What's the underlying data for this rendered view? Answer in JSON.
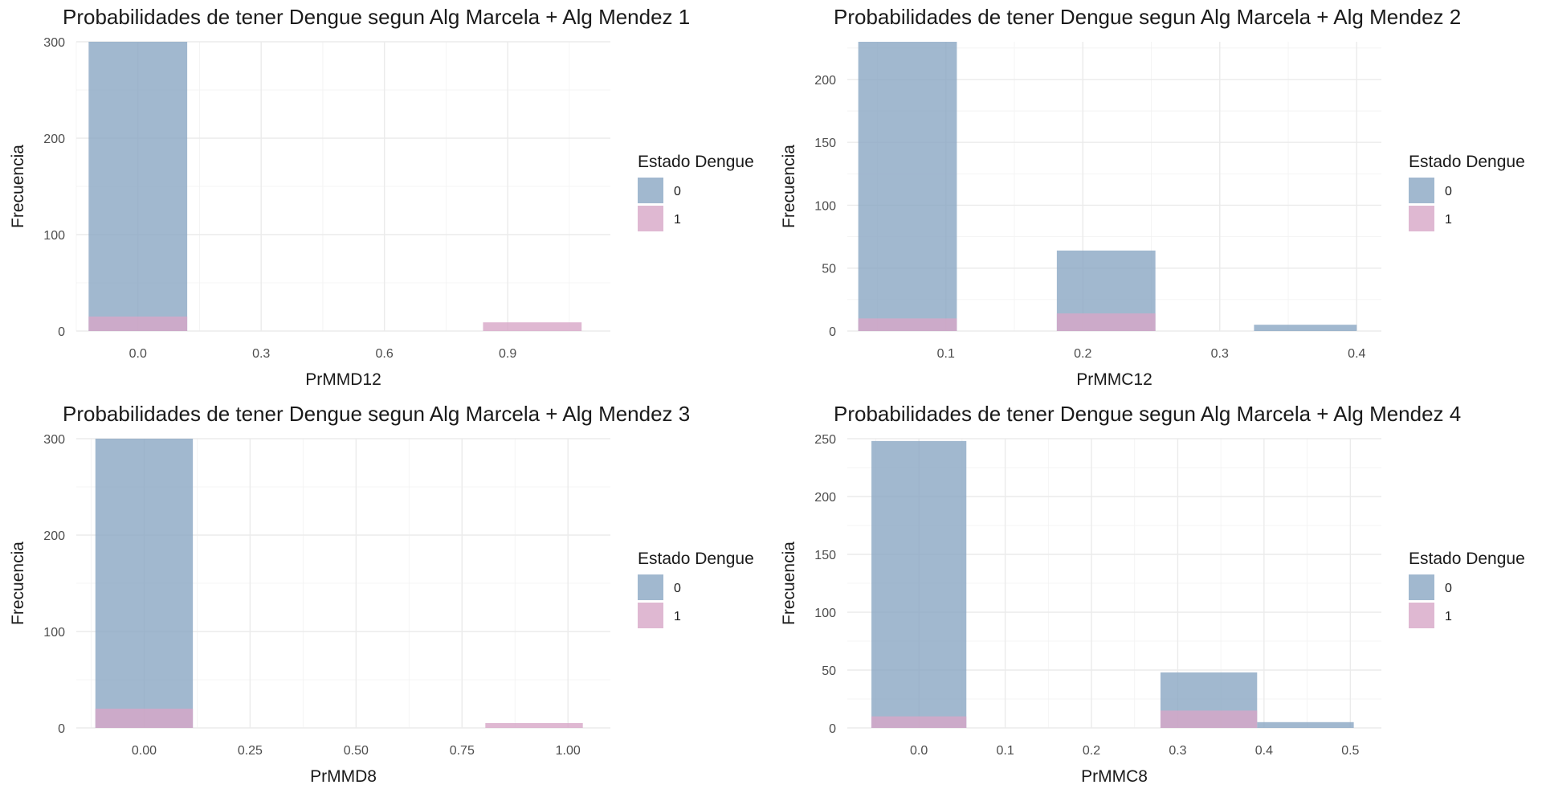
{
  "colors": {
    "level_0": "#8aa6c3",
    "level_1": "#d7a6c7",
    "opacity": 0.8
  },
  "chart_data": [
    {
      "type": "bar",
      "title": "Probabilidades de tener Dengue segun Alg Marcela + Alg Mendez 1",
      "xlabel": "PrMMD12",
      "ylabel": "Frecuencia",
      "xlim": [
        -0.15,
        1.15
      ],
      "ylim": [
        0,
        300
      ],
      "x_ticks": [
        0.0,
        0.3,
        0.6,
        0.9
      ],
      "x_tick_labels": [
        "0.0",
        "0.3",
        "0.6",
        "0.9"
      ],
      "y_ticks": [
        0,
        100,
        200,
        300
      ],
      "y_tick_labels": [
        "0",
        "100",
        "200",
        "300"
      ],
      "legend": {
        "title": "Estado Dengue",
        "entries": [
          "0",
          "1"
        ],
        "position": "right"
      },
      "series": [
        {
          "name": "0",
          "bins": [
            {
              "x0": -0.12,
              "x1": 0.12,
              "count": 300
            }
          ]
        },
        {
          "name": "1",
          "bins": [
            {
              "x0": -0.12,
              "x1": 0.12,
              "count": 15
            },
            {
              "x0": 0.84,
              "x1": 1.08,
              "count": 9
            }
          ]
        }
      ]
    },
    {
      "type": "bar",
      "title": "Probabilidades de tener Dengue segun Alg Marcela + Alg Mendez 2",
      "xlabel": "PrMMC12",
      "ylabel": "Frecuencia",
      "xlim": [
        0.028,
        0.418
      ],
      "ylim": [
        0,
        230
      ],
      "x_ticks": [
        0.1,
        0.2,
        0.3,
        0.4
      ],
      "x_tick_labels": [
        "0.1",
        "0.2",
        "0.3",
        "0.4"
      ],
      "y_ticks": [
        0,
        50,
        100,
        150,
        200
      ],
      "y_tick_labels": [
        "0",
        "50",
        "100",
        "150",
        "200"
      ],
      "legend": {
        "title": "Estado Dengue",
        "entries": [
          "0",
          "1"
        ],
        "position": "right"
      },
      "series": [
        {
          "name": "0",
          "bins": [
            {
              "x0": 0.036,
              "x1": 0.108,
              "count": 230
            },
            {
              "x0": 0.181,
              "x1": 0.253,
              "count": 64
            },
            {
              "x0": 0.325,
              "x1": 0.4,
              "count": 5
            }
          ]
        },
        {
          "name": "1",
          "bins": [
            {
              "x0": 0.036,
              "x1": 0.108,
              "count": 10
            },
            {
              "x0": 0.181,
              "x1": 0.253,
              "count": 14
            }
          ]
        }
      ]
    },
    {
      "type": "bar",
      "title": "Probabilidades de tener Dengue segun Alg Marcela + Alg Mendez 3",
      "xlabel": "PrMMD8",
      "ylabel": "Frecuencia",
      "xlim": [
        -0.16,
        1.1
      ],
      "ylim": [
        0,
        300
      ],
      "x_ticks": [
        0.0,
        0.25,
        0.5,
        0.75,
        1.0
      ],
      "x_tick_labels": [
        "0.00",
        "0.25",
        "0.50",
        "0.75",
        "1.00"
      ],
      "y_ticks": [
        0,
        100,
        200,
        300
      ],
      "y_tick_labels": [
        "0",
        "100",
        "200",
        "300"
      ],
      "legend": {
        "title": "Estado Dengue",
        "entries": [
          "0",
          "1"
        ],
        "position": "right"
      },
      "series": [
        {
          "name": "0",
          "bins": [
            {
              "x0": -0.115,
              "x1": 0.115,
              "count": 300
            }
          ]
        },
        {
          "name": "1",
          "bins": [
            {
              "x0": -0.115,
              "x1": 0.115,
              "count": 20
            },
            {
              "x0": 0.805,
              "x1": 1.035,
              "count": 5
            }
          ]
        }
      ]
    },
    {
      "type": "bar",
      "title": "Probabilidades de tener Dengue segun Alg Marcela + Alg Mendez 4",
      "xlabel": "PrMMC8",
      "ylabel": "Frecuencia",
      "xlim": [
        -0.083,
        0.536
      ],
      "ylim": [
        0,
        250
      ],
      "x_ticks": [
        0.0,
        0.1,
        0.2,
        0.3,
        0.4,
        0.5
      ],
      "x_tick_labels": [
        "0.0",
        "0.1",
        "0.2",
        "0.3",
        "0.4",
        "0.5"
      ],
      "y_ticks": [
        0,
        50,
        100,
        150,
        200,
        250
      ],
      "y_tick_labels": [
        "0",
        "50",
        "100",
        "150",
        "200",
        "250"
      ],
      "legend": {
        "title": "Estado Dengue",
        "entries": [
          "0",
          "1"
        ],
        "position": "right"
      },
      "series": [
        {
          "name": "0",
          "bins": [
            {
              "x0": -0.055,
              "x1": 0.055,
              "count": 248
            },
            {
              "x0": 0.28,
              "x1": 0.392,
              "count": 48
            },
            {
              "x0": 0.392,
              "x1": 0.504,
              "count": 5
            }
          ]
        },
        {
          "name": "1",
          "bins": [
            {
              "x0": -0.055,
              "x1": 0.055,
              "count": 10
            },
            {
              "x0": 0.28,
              "x1": 0.392,
              "count": 15
            }
          ]
        }
      ]
    }
  ]
}
